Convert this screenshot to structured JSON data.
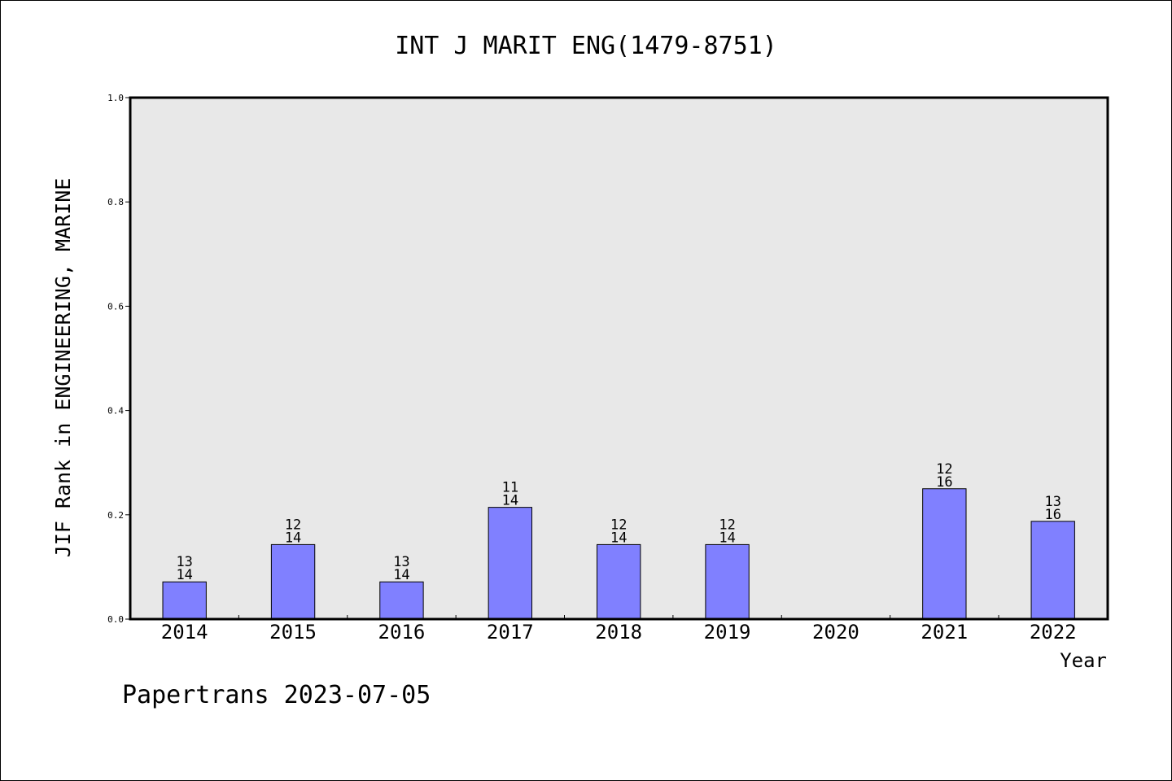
{
  "chart_data": {
    "type": "bar",
    "title": "INT J MARIT ENG(1479-8751)",
    "xlabel": "Year",
    "ylabel": "JIF Rank in ENGINEERING, MARINE",
    "categories": [
      "2014",
      "2015",
      "2016",
      "2017",
      "2018",
      "2019",
      "2020",
      "2021",
      "2022"
    ],
    "values": [
      0.0714,
      0.1429,
      0.0714,
      0.2143,
      0.1429,
      0.1429,
      null,
      0.25,
      0.1875
    ],
    "bar_labels": [
      {
        "rank": "13",
        "total": "14"
      },
      {
        "rank": "12",
        "total": "14"
      },
      {
        "rank": "13",
        "total": "14"
      },
      {
        "rank": "11",
        "total": "14"
      },
      {
        "rank": "12",
        "total": "14"
      },
      {
        "rank": "12",
        "total": "14"
      },
      null,
      {
        "rank": "12",
        "total": "16"
      },
      {
        "rank": "13",
        "total": "16"
      }
    ],
    "ylim": [
      0,
      1.0
    ],
    "yticks": [
      "0.0",
      "0.2",
      "0.4",
      "0.6",
      "0.8",
      "1.0"
    ],
    "grid": false,
    "colors": {
      "bar": "#8080ff",
      "plot_background": "#e8e8e8"
    }
  },
  "footer": {
    "text": "Papertrans 2023-07-05"
  }
}
